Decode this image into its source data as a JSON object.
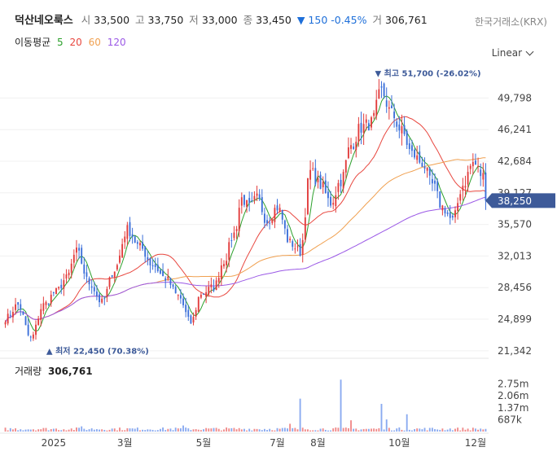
{
  "header": {
    "stock_name": "덕산네오룩스",
    "open_label": "시",
    "open": "33,500",
    "high_label": "고",
    "high": "33,750",
    "low_label": "저",
    "low": "33,000",
    "close_label": "종",
    "close": "33,450",
    "change": "▼ 150 -0.45%",
    "volume_label": "거",
    "volume": "306,761",
    "exchange": "한국거래소(KRX)"
  },
  "moving_average": {
    "label": "이동평균",
    "periods": [
      {
        "label": "5",
        "color": "#2ca02c"
      },
      {
        "label": "20",
        "color": "#e8473f"
      },
      {
        "label": "60",
        "color": "#f0a050"
      },
      {
        "label": "120",
        "color": "#9b59e6"
      }
    ]
  },
  "scale_selector": "Linear",
  "colors": {
    "up": "#e23b3b",
    "down": "#3b6fd9",
    "last_price_bg": "#3d5a99"
  },
  "chart_data": {
    "type": "candlestick",
    "price_ticks": [
      "49,798",
      "46,241",
      "42,684",
      "39,127",
      "35,570",
      "32,013",
      "28,456",
      "24,899",
      "21,342"
    ],
    "price_tick_values": [
      49798,
      46241,
      42684,
      39127,
      35570,
      32013,
      28456,
      24899,
      21342
    ],
    "price_range": [
      20500,
      53500
    ],
    "x_ticks": [
      "2025",
      "3월",
      "5월",
      "7월",
      "8월",
      "10월",
      "12월"
    ],
    "last_price": "38,250",
    "last_price_value": 38250,
    "max_annotation": "▼ 최고 51,700 (-26.02%)",
    "min_annotation": "▲ 최저 22,450 (70.38%)",
    "max_value": 51700,
    "min_value": 22450,
    "waypoints": [
      [
        0,
        25000
      ],
      [
        5,
        26500
      ],
      [
        10,
        22700
      ],
      [
        15,
        26500
      ],
      [
        20,
        28000
      ],
      [
        24,
        29500
      ],
      [
        28,
        32500
      ],
      [
        33,
        29000
      ],
      [
        38,
        26800
      ],
      [
        43,
        30500
      ],
      [
        48,
        35000
      ],
      [
        53,
        33000
      ],
      [
        58,
        31000
      ],
      [
        63,
        29500
      ],
      [
        68,
        27500
      ],
      [
        73,
        24500
      ],
      [
        77,
        27800
      ],
      [
        82,
        28500
      ],
      [
        86,
        31500
      ],
      [
        90,
        34500
      ],
      [
        93,
        38500
      ],
      [
        96,
        37500
      ],
      [
        99,
        38500
      ],
      [
        103,
        36000
      ],
      [
        107,
        37500
      ],
      [
        112,
        33500
      ],
      [
        116,
        32500
      ],
      [
        120,
        41500
      ],
      [
        124,
        40000
      ],
      [
        128,
        38000
      ],
      [
        132,
        40500
      ],
      [
        136,
        44500
      ],
      [
        140,
        46500
      ],
      [
        144,
        47000
      ],
      [
        148,
        50500
      ],
      [
        152,
        48000
      ],
      [
        156,
        46000
      ],
      [
        160,
        43500
      ],
      [
        164,
        42500
      ],
      [
        168,
        40000
      ],
      [
        172,
        37500
      ],
      [
        176,
        36000
      ],
      [
        180,
        40000
      ],
      [
        184,
        42500
      ],
      [
        188,
        41000
      ],
      [
        190,
        38250
      ]
    ],
    "volume_ticks": [
      "2.75m",
      "2.06m",
      "1.37m",
      "687k"
    ],
    "volume_tick_values": [
      2750000,
      2060000,
      1370000,
      687000
    ],
    "volume_max": 3200000,
    "volume_spikes": [
      [
        116,
        1900000
      ],
      [
        132,
        3000000
      ],
      [
        136,
        650000
      ],
      [
        148,
        1600000
      ],
      [
        150,
        700000
      ],
      [
        158,
        1000000
      ],
      [
        112,
        450000
      ],
      [
        70,
        350000
      ],
      [
        30,
        300000
      ]
    ]
  },
  "volume_panel": {
    "label": "거래량",
    "value": "306,761"
  }
}
